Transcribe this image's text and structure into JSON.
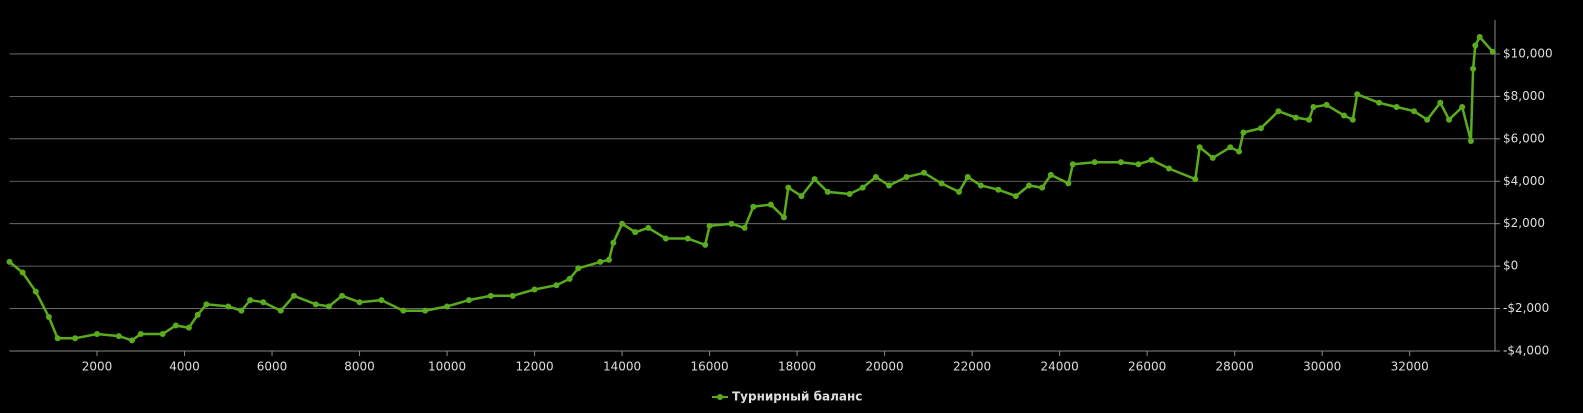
{
  "chart_data": {
    "type": "line",
    "x": [
      0,
      300,
      600,
      900,
      1100,
      1500,
      2000,
      2500,
      2800,
      3000,
      3500,
      3800,
      4100,
      4300,
      4500,
      5000,
      5300,
      5500,
      5800,
      6200,
      6500,
      7000,
      7300,
      7600,
      8000,
      8500,
      9000,
      9500,
      10000,
      10500,
      11000,
      11500,
      12000,
      12500,
      12800,
      13000,
      13500,
      13700,
      13800,
      14000,
      14300,
      14600,
      15000,
      15500,
      15900,
      16000,
      16500,
      16800,
      17000,
      17400,
      17700,
      17800,
      18100,
      18400,
      18700,
      19200,
      19500,
      19800,
      20100,
      20500,
      20900,
      21300,
      21700,
      21900,
      22200,
      22600,
      23000,
      23300,
      23600,
      23800,
      24200,
      24300,
      24800,
      25400,
      25800,
      26100,
      26500,
      27100,
      27200,
      27500,
      27900,
      28100,
      28200,
      28600,
      29000,
      29400,
      29700,
      29800,
      30100,
      30500,
      30700,
      30800,
      31300,
      31700,
      32100,
      32400,
      32700,
      32900,
      33200,
      33400,
      33450,
      33500,
      33600,
      33900
    ],
    "series": [
      {
        "name": "Турнирный баланс",
        "color": "#5aac1e",
        "values": [
          200,
          -300,
          -1200,
          -2400,
          -3400,
          -3400,
          -3200,
          -3300,
          -3500,
          -3200,
          -3200,
          -2800,
          -2900,
          -2300,
          -1800,
          -1900,
          -2100,
          -1600,
          -1700,
          -2100,
          -1400,
          -1800,
          -1900,
          -1400,
          -1700,
          -1600,
          -2100,
          -2100,
          -1900,
          -1600,
          -1400,
          -1400,
          -1100,
          -900,
          -600,
          -100,
          200,
          300,
          1100,
          2000,
          1600,
          1800,
          1300,
          1300,
          1000,
          1900,
          2000,
          1800,
          2800,
          2900,
          2300,
          3700,
          3300,
          4100,
          3500,
          3400,
          3700,
          4200,
          3800,
          4200,
          4400,
          3900,
          3500,
          4200,
          3800,
          3600,
          3300,
          3800,
          3700,
          4300,
          3900,
          4800,
          4900,
          4900,
          4800,
          5000,
          4600,
          4100,
          5600,
          5100,
          5600,
          5400,
          6300,
          6500,
          7300,
          7000,
          6900,
          7500,
          7600,
          7100,
          6900,
          8100,
          7700,
          7500,
          7300,
          6900,
          7700,
          6900,
          7500,
          5900,
          9300,
          10400,
          10800,
          10100
        ]
      }
    ],
    "xlim": [
      0,
      33950
    ],
    "xticks": [
      2000,
      4000,
      6000,
      8000,
      10000,
      12000,
      14000,
      16000,
      18000,
      20000,
      22000,
      24000,
      26000,
      28000,
      30000,
      32000
    ],
    "ylim": [
      -4000,
      11600
    ],
    "yticks": [
      {
        "value": -4000,
        "label": "-$4,000"
      },
      {
        "value": -2000,
        "label": "-$2,000"
      },
      {
        "value": 0,
        "label": "$0"
      },
      {
        "value": 2000,
        "label": "$2,000"
      },
      {
        "value": 4000,
        "label": "$4,000"
      },
      {
        "value": 6000,
        "label": "$6,000"
      },
      {
        "value": 8000,
        "label": "$8,000"
      },
      {
        "value": 10000,
        "label": "$10,000"
      }
    ],
    "grid": true,
    "legend": "bottom"
  }
}
